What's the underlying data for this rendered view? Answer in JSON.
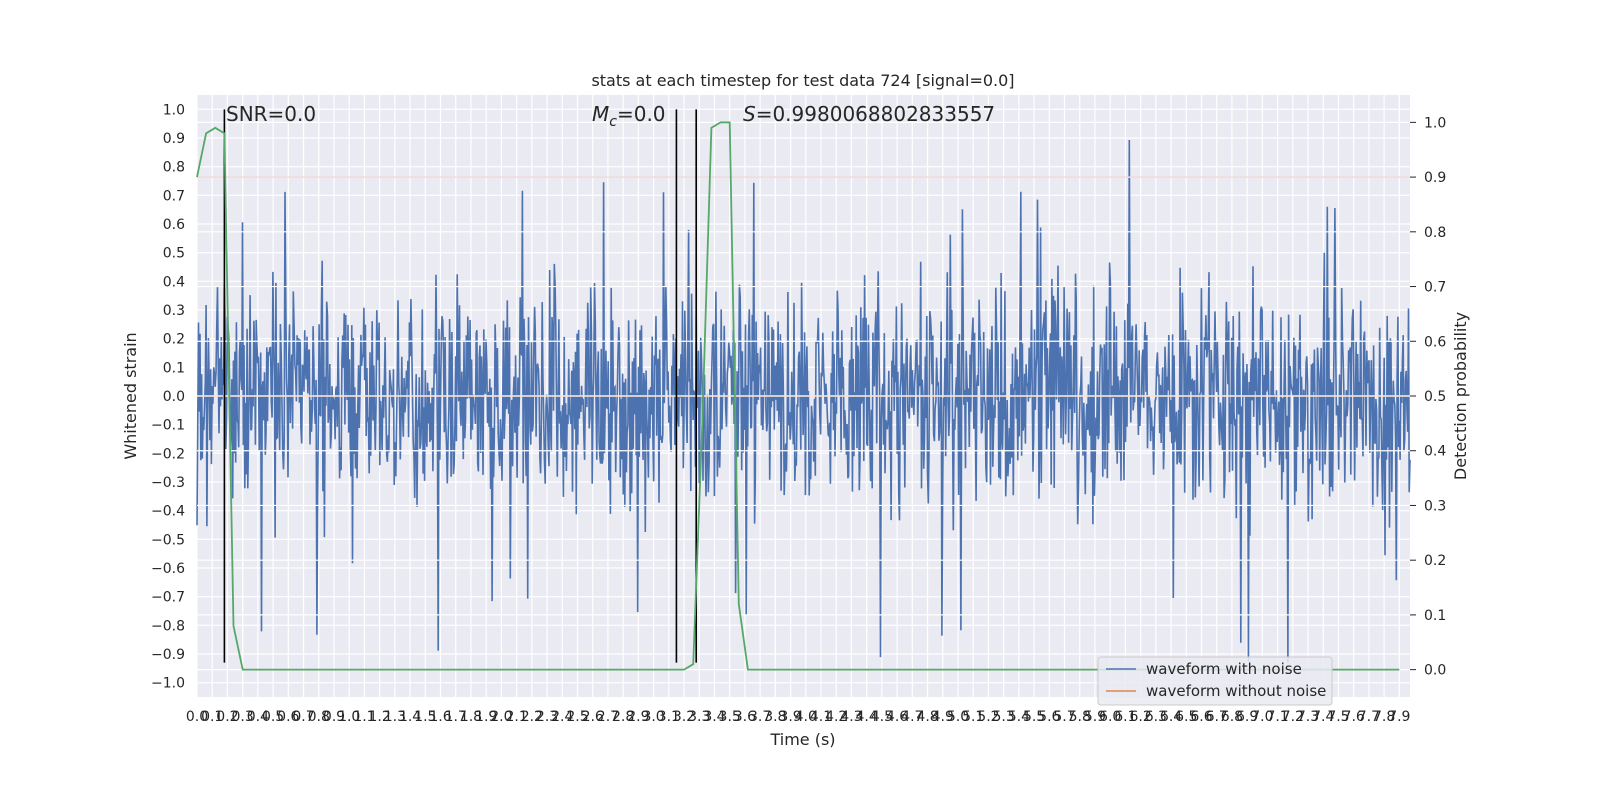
{
  "chart_data": {
    "type": "line",
    "title": "stats at each timestep for test data 724 [signal=0.0]",
    "xlabel": "Time (s)",
    "ylabel": "Whitened strain",
    "y2label": "Detection probability",
    "xlim": [
      0.0,
      7.97
    ],
    "ylim": [
      -1.05,
      1.05
    ],
    "y2lim": [
      -0.05,
      1.05
    ],
    "x_ticks": [
      "0.0",
      "0.1",
      "0.2",
      "0.3",
      "0.4",
      "0.5",
      "0.6",
      "0.7",
      "0.8",
      "0.9",
      "1.0",
      "1.1",
      "1.2",
      "1.3",
      "1.4",
      "1.5",
      "1.6",
      "1.7",
      "1.8",
      "1.9",
      "2.0",
      "2.1",
      "2.2",
      "2.3",
      "2.4",
      "2.5",
      "2.6",
      "2.7",
      "2.8",
      "2.9",
      "3.0",
      "3.1",
      "3.2",
      "3.3",
      "3.4",
      "3.5",
      "3.6",
      "3.7",
      "3.8",
      "3.9",
      "4.0",
      "4.1",
      "4.2",
      "4.3",
      "4.4",
      "4.5",
      "4.6",
      "4.7",
      "4.8",
      "4.9",
      "5.0",
      "5.1",
      "5.2",
      "5.3",
      "5.4",
      "5.5",
      "5.6",
      "5.7",
      "5.8",
      "5.9",
      "6.0",
      "6.1",
      "6.2",
      "6.3",
      "6.4",
      "6.5",
      "6.6",
      "6.7",
      "6.8",
      "6.9",
      "7.0",
      "7.1",
      "7.2",
      "7.3",
      "7.4",
      "7.5",
      "7.6",
      "7.7",
      "7.8",
      "7.9"
    ],
    "y_ticks": [
      "1.0",
      "0.9",
      "0.8",
      "0.7",
      "0.6",
      "0.5",
      "0.4",
      "0.3",
      "0.2",
      "0.1",
      "0.0",
      "−0.1",
      "−0.2",
      "−0.3",
      "−0.4",
      "−0.5",
      "−0.6",
      "−0.7",
      "−0.8",
      "−0.9",
      "−1.0"
    ],
    "y2_ticks": [
      "1.0",
      "0.9",
      "0.8",
      "0.7",
      "0.6",
      "0.5",
      "0.4",
      "0.3",
      "0.2",
      "0.1",
      "0.0"
    ],
    "annotations": {
      "snr": "SNR=0.0",
      "mc_symbol": "M",
      "mc_sub": "c",
      "mc_value": "=0.0",
      "s_symbol": "S",
      "s_value": "=0.9980068802833557"
    },
    "series": [
      {
        "name": "waveform with noise",
        "color": "#4c72b0",
        "noise_envelope": [
          0.45,
          -0.45
        ],
        "peak_extremes": [
          1.0,
          -0.93
        ]
      },
      {
        "name": "waveform without noise",
        "color": "#dd8452",
        "values_constant": 0.0
      }
    ],
    "detection_probability": {
      "color": "#55a868",
      "x": [
        0.0,
        0.06,
        0.12,
        0.18,
        0.24,
        0.3,
        0.36,
        3.0,
        3.2,
        3.26,
        3.32,
        3.38,
        3.44,
        3.5,
        3.56,
        3.62,
        3.66,
        3.72,
        3.78,
        3.84,
        5.0,
        5.1,
        5.2,
        7.9
      ],
      "y": [
        0.9,
        0.98,
        0.99,
        0.98,
        0.08,
        0.0,
        0.0,
        0.0,
        0.0,
        0.01,
        0.45,
        0.99,
        1.0,
        1.0,
        0.12,
        0.0,
        0.0,
        0.0,
        0.0,
        0.0,
        0.0,
        0.0,
        0.0,
        0.0
      ]
    },
    "threshold_line": {
      "color": "#c44e52",
      "value": 0.9
    },
    "vertical_markers": {
      "color": "#000000",
      "x": [
        0.18,
        3.15,
        3.28
      ],
      "span": [
        -0.93,
        1.0
      ]
    },
    "legend": {
      "position": "lower-right",
      "entries": [
        "waveform with noise",
        "waveform without noise"
      ]
    },
    "grid": true
  }
}
